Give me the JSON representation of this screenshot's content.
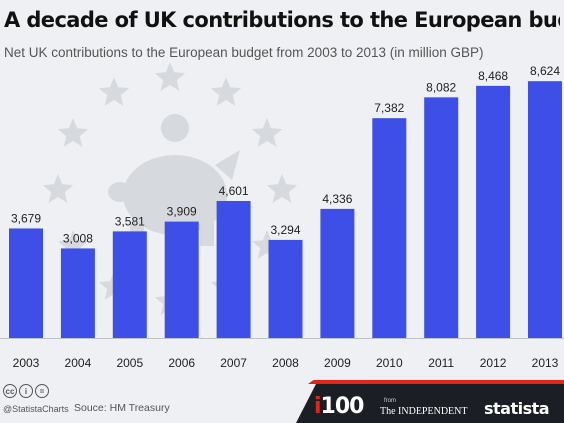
{
  "header": {
    "title": "A decade of UK contributions to the European budget",
    "subtitle": "Net UK contributions to the European budget from 2003 to 2013 (in million GBP)"
  },
  "chart_data": {
    "type": "bar",
    "title": "A decade of UK contributions to the European budget",
    "subtitle": "Net UK contributions to the European budget from 2003 to 2013 (in million GBP)",
    "categories": [
      "2003",
      "2004",
      "2005",
      "2006",
      "2007",
      "2008",
      "2009",
      "2010",
      "2011",
      "2012",
      "2013"
    ],
    "values": [
      3679,
      3008,
      3581,
      3909,
      4601,
      3294,
      4336,
      7382,
      8082,
      8468,
      8624
    ],
    "value_labels": [
      "3,679",
      "3,008",
      "3,581",
      "3,909",
      "4,601",
      "3,294",
      "4,336",
      "7,382",
      "8,082",
      "8,468",
      "8,624"
    ],
    "xlabel": "",
    "ylabel": "",
    "ylim": [
      0,
      9000
    ],
    "grid": false,
    "bar_color": "#3d4fe6"
  },
  "background": {
    "icons": [
      "star-icon",
      "piggy-bank-icon"
    ],
    "icon_color": "#d6d9de"
  },
  "footer": {
    "license_icons": [
      "cc",
      "i",
      "="
    ],
    "handle": "@StatistaCharts",
    "source": "Souce: HM Treasury",
    "brand_i100_i": "i",
    "brand_i100_num": "100",
    "brand_from": "from",
    "brand_independent": "The INDEPENDENT",
    "brand_statista": "statista",
    "brand_bar_color": "#1b1e24",
    "brand_red": "#e3241b"
  }
}
